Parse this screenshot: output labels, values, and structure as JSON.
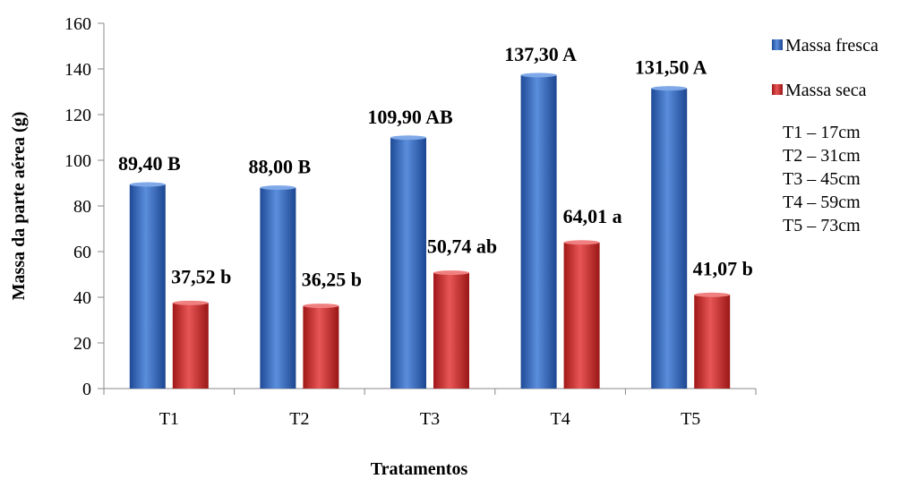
{
  "chart_data": {
    "type": "bar",
    "xlabel": "Tratamentos",
    "ylabel": "Massa da parte aérea (g)",
    "ylim": [
      0,
      160
    ],
    "yticks": [
      0,
      20,
      40,
      60,
      80,
      100,
      120,
      140,
      160
    ],
    "categories": [
      "T1",
      "T2",
      "T3",
      "T4",
      "T5"
    ],
    "series": [
      {
        "name": "Massa fresca",
        "color": "#2E5FB8",
        "values": [
          89.4,
          88.0,
          109.9,
          137.3,
          131.5
        ],
        "labels": [
          "89,40 B",
          "88,00 B",
          "109,90 AB",
          "137,30 A",
          "131,50 A"
        ]
      },
      {
        "name": "Massa seca",
        "color": "#C0282A",
        "values": [
          37.52,
          36.25,
          50.74,
          64.01,
          41.07
        ],
        "labels": [
          "37,52 b",
          "36,25 b",
          "50,74 ab",
          "64,01 a",
          "41,07 b"
        ]
      }
    ],
    "legend_position": "right",
    "legend_notes": [
      "T1 – 17cm",
      "T2 – 31cm",
      "T3 – 45cm",
      "T4 – 59cm",
      "T5 – 73cm"
    ],
    "grid": false
  }
}
